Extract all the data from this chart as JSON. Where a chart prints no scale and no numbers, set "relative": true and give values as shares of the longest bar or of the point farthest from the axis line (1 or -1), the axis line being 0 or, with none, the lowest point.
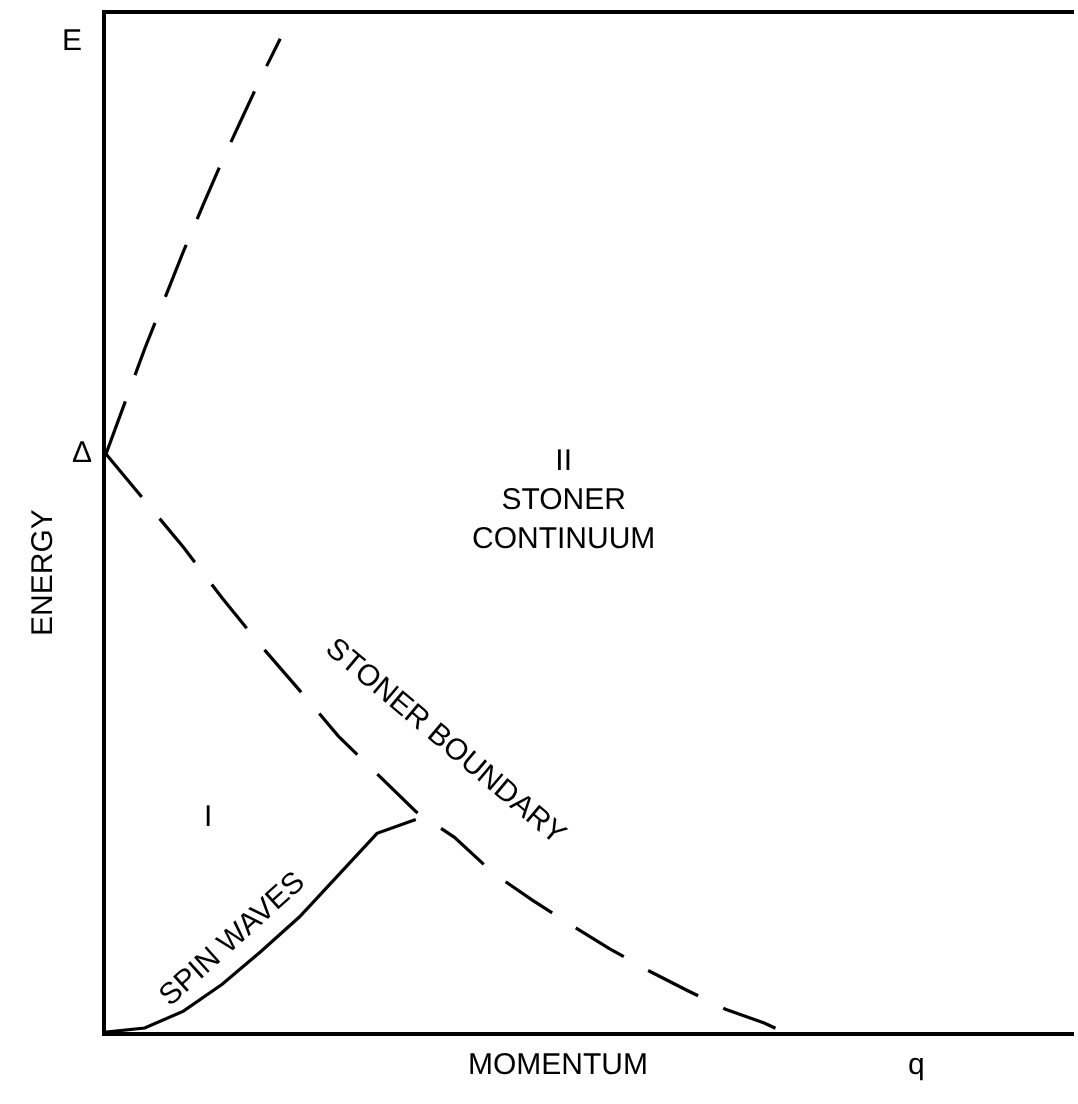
{
  "chart_data": {
    "type": "line",
    "relative": true,
    "xlabel": "MOMENTUM",
    "ylabel": "ENERGY",
    "categories": [
      null,
      null,
      null,
      null,
      null,
      null,
      null,
      null,
      null,
      null,
      null,
      null,
      null,
      null,
      null,
      null,
      null,
      null,
      null,
      null,
      null,
      null,
      null,
      null,
      null,
      null,
      null,
      null,
      null,
      null,
      null,
      null,
      null,
      null,
      null,
      null,
      null,
      null,
      null,
      null,
      null,
      null,
      null,
      null,
      null,
      null,
      null,
      null,
      null,
      null,
      null
    ],
    "series": [
      {
        "color": "#000000",
        "line_style": "dashed",
        "values": [
          0.582,
          0.635,
          0.688,
          0.737,
          0.786,
          0.832,
          0.877,
          0.919,
          0.961,
          1.0,
          null,
          null,
          null,
          null,
          null,
          null,
          null,
          null,
          null,
          null,
          null,
          null,
          null,
          null,
          null,
          null,
          null,
          null,
          null,
          null,
          null,
          null,
          null,
          null,
          null,
          null,
          null,
          null,
          null,
          null,
          null,
          null,
          null,
          null,
          null,
          null,
          null,
          null,
          null,
          null,
          null
        ]
      },
      {
        "color": "#000000",
        "line_style": "dashed",
        "values": [
          0.582,
          null,
          0.535,
          null,
          0.488,
          null,
          0.437,
          null,
          0.389,
          null,
          0.344,
          null,
          0.298,
          null,
          0.26,
          null,
          0.222,
          null,
          0.196,
          null,
          0.16,
          null,
          0.133,
          null,
          0.108,
          null,
          0.084,
          null,
          0.062,
          null,
          0.042,
          null,
          0.023,
          null,
          0.009,
          0,
          null,
          null,
          null,
          null,
          null,
          null,
          null,
          null,
          null,
          null,
          null,
          null,
          null,
          null,
          null
        ]
      },
      {
        "color": "#000000",
        "line_style": "solid",
        "values": [
          0,
          null,
          0.004,
          null,
          0.021,
          null,
          0.048,
          null,
          0.081,
          null,
          0.116,
          null,
          0.158,
          null,
          0.2,
          null,
          0.214,
          null,
          null,
          null,
          null,
          null,
          null,
          null,
          null,
          null,
          null,
          null,
          null,
          null,
          null,
          null,
          null,
          null,
          null,
          null,
          null,
          null,
          null,
          null,
          null,
          null,
          null,
          null,
          null,
          null,
          null,
          null,
          null,
          null,
          null
        ]
      }
    ],
    "annotations": [
      "E",
      "Δ",
      "I",
      "II\nSTONER\nCONTINUUM",
      "STONER BOUNDARY",
      "SPIN WAVES",
      "q"
    ]
  }
}
